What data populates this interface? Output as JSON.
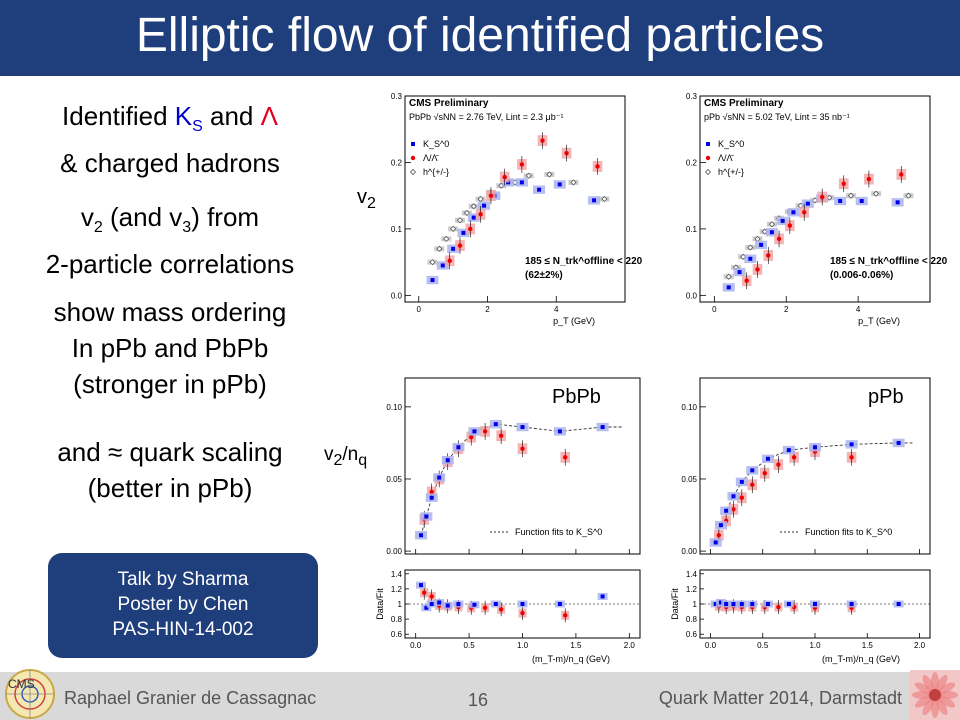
{
  "title": "Elliptic flow of identified particles",
  "bullets": {
    "b1_l1_a": "Identified ",
    "b1_l1_k": "K",
    "b1_l1_ks": "S",
    "b1_l1_and": " and ",
    "b1_l1_lambda": "Λ",
    "b1_l2": "& charged hadrons",
    "b2_l1_a": "v",
    "b2_l1_sub": "2",
    "b2_l1_b": " (and v",
    "b2_l1_sub2": "3",
    "b2_l1_c": ") from",
    "b2_l2": "2-particle correlations",
    "b3_l1": "show mass ordering",
    "b3_l2": "In pPb and PbPb",
    "b3_l3": "(stronger in pPb)",
    "b4_l1": "and ≈ quark scaling",
    "b4_l2": "(better in pPb)"
  },
  "talkbox": {
    "line1": "Talk by Sharma",
    "line2": "Poster by Chen",
    "line3": "PAS-HIN-14-002"
  },
  "footer": {
    "left": "Raphael Granier de Cassagnac",
    "page": "16",
    "right": "Quark Matter 2014, Darmstadt"
  },
  "overlays": {
    "v2": "v",
    "v2_sub": "2",
    "v2nq": "v",
    "v2nq_sub": "2",
    "v2nq_rest": "/n",
    "v2nq_sub2": "q",
    "pbpb": "PbPb",
    "ppb": "pPb"
  },
  "colors": {
    "title_bg": "#1f3e7c",
    "ks": "#0000ee",
    "lambda": "#ee0000",
    "hadron": "#555555",
    "ks_box": "#aab4ee",
    "lambda_box": "#f4a6a6",
    "hadron_box": "#c8c8c8"
  },
  "chart_data": [
    {
      "type": "scatter",
      "panel": "top-left",
      "header": "CMS Preliminary",
      "system": "PbPb  √sNN = 2.76 TeV, Lint = 2.3 μb⁻¹",
      "selection": "185 ≤ N_trk^offline < 220",
      "selection2": "(62±2%)",
      "xlabel": "p_T (GeV)",
      "ylabel": "v2",
      "xlim": [
        -0.4,
        6.0
      ],
      "ylim": [
        -0.01,
        0.3
      ],
      "xticks": [
        "0",
        "2",
        "4"
      ],
      "yticks": [
        "0.0",
        "0.1",
        "0.2",
        "0.3"
      ],
      "legend": [
        "K_S^0",
        "Λ/Λ̄",
        "h^{+/-}"
      ],
      "series": [
        {
          "name": "K_S^0",
          "x": [
            0.4,
            0.7,
            1.0,
            1.3,
            1.6,
            1.9,
            2.2,
            2.6,
            3.0,
            3.5,
            4.1,
            5.1
          ],
          "y": [
            0.023,
            0.045,
            0.07,
            0.094,
            0.117,
            0.135,
            0.15,
            0.17,
            0.17,
            0.159,
            0.167,
            0.143
          ]
        },
        {
          "name": "Λ/Λ̄",
          "x": [
            0.9,
            1.2,
            1.5,
            1.8,
            2.1,
            2.5,
            3.0,
            3.6,
            4.3,
            5.2
          ],
          "y": [
            0.052,
            0.075,
            0.1,
            0.122,
            0.15,
            0.178,
            0.197,
            0.233,
            0.214,
            0.194
          ]
        },
        {
          "name": "h^{+/-}",
          "x": [
            0.4,
            0.6,
            0.8,
            1.0,
            1.2,
            1.4,
            1.6,
            1.8,
            2.1,
            2.4,
            2.8,
            3.2,
            3.8,
            4.5,
            5.4
          ],
          "y": [
            0.05,
            0.07,
            0.085,
            0.1,
            0.113,
            0.124,
            0.134,
            0.145,
            0.155,
            0.165,
            0.17,
            0.18,
            0.182,
            0.17,
            0.145
          ]
        }
      ]
    },
    {
      "type": "scatter",
      "panel": "top-right",
      "header": "CMS Preliminary",
      "system": "pPb  √sNN = 5.02 TeV, Lint = 35 nb⁻¹",
      "selection": "185 ≤ N_trk^offline < 220",
      "selection2": "(0.006-0.06%)",
      "xlabel": "p_T (GeV)",
      "ylabel": "v2",
      "xlim": [
        -0.4,
        6.0
      ],
      "ylim": [
        -0.01,
        0.3
      ],
      "xticks": [
        "0",
        "2",
        "4"
      ],
      "yticks": [
        "0.0",
        "0.1",
        "0.2",
        "0.3"
      ],
      "legend": [
        "K_S^0",
        "Λ/Λ̄",
        "h^{+/-}"
      ],
      "series": [
        {
          "name": "K_S^0",
          "x": [
            0.4,
            0.7,
            1.0,
            1.3,
            1.6,
            1.9,
            2.2,
            2.6,
            3.0,
            3.5,
            4.1,
            5.1
          ],
          "y": [
            0.012,
            0.035,
            0.055,
            0.076,
            0.095,
            0.112,
            0.125,
            0.138,
            0.146,
            0.142,
            0.142,
            0.14
          ]
        },
        {
          "name": "Λ/Λ̄",
          "x": [
            0.9,
            1.2,
            1.5,
            1.8,
            2.1,
            2.5,
            3.0,
            3.6,
            4.3,
            5.2
          ],
          "y": [
            0.022,
            0.039,
            0.06,
            0.085,
            0.105,
            0.125,
            0.148,
            0.168,
            0.175,
            0.182
          ]
        },
        {
          "name": "h^{+/-}",
          "x": [
            0.4,
            0.6,
            0.8,
            1.0,
            1.2,
            1.4,
            1.6,
            1.8,
            2.1,
            2.4,
            2.8,
            3.2,
            3.8,
            4.5,
            5.4
          ],
          "y": [
            0.028,
            0.042,
            0.058,
            0.072,
            0.085,
            0.096,
            0.107,
            0.116,
            0.126,
            0.135,
            0.143,
            0.147,
            0.15,
            0.153,
            0.15
          ]
        }
      ]
    },
    {
      "type": "scatter",
      "panel": "bottom-left",
      "label": "PbPb",
      "fit_label": "Function fits to K_S^0",
      "xlabel": "(m_T-m)/n_q (GeV)",
      "ylabel": "v2/nq",
      "xlim": [
        -0.1,
        2.1
      ],
      "ylim": [
        -0.002,
        0.12
      ],
      "xticks": [
        "0.0",
        "0.5",
        "1.0",
        "1.5",
        "2.0"
      ],
      "yticks": [
        "0.00",
        "0.05",
        "0.10"
      ],
      "ratio_ylabel": "Data/Fit",
      "ratio_ylim": [
        0.55,
        1.45
      ],
      "ratio_yticks": [
        "0.6",
        "0.8",
        "1",
        "1.2",
        "1.4"
      ],
      "series": [
        {
          "name": "K_S^0",
          "x": [
            0.05,
            0.1,
            0.15,
            0.22,
            0.3,
            0.4,
            0.55,
            0.75,
            1.0,
            1.35,
            1.75
          ],
          "y": [
            0.011,
            0.024,
            0.037,
            0.051,
            0.063,
            0.072,
            0.083,
            0.088,
            0.086,
            0.083,
            0.086
          ]
        },
        {
          "name": "Λ/Λ̄",
          "x": [
            0.08,
            0.15,
            0.22,
            0.3,
            0.4,
            0.52,
            0.65,
            0.8,
            1.0,
            1.4
          ],
          "y": [
            0.022,
            0.041,
            0.05,
            0.062,
            0.071,
            0.079,
            0.083,
            0.08,
            0.071,
            0.065
          ]
        }
      ],
      "ratio_series": [
        {
          "name": "K_S^0",
          "x": [
            0.05,
            0.1,
            0.15,
            0.22,
            0.3,
            0.4,
            0.55,
            0.75,
            1.0,
            1.35,
            1.75
          ],
          "y": [
            1.25,
            0.95,
            1.0,
            1.02,
            0.98,
            1.0,
            0.99,
            1.0,
            1.0,
            1.0,
            1.1
          ]
        },
        {
          "name": "Λ/Λ̄",
          "x": [
            0.08,
            0.15,
            0.22,
            0.3,
            0.4,
            0.52,
            0.65,
            0.8,
            1.0,
            1.4
          ],
          "y": [
            1.15,
            1.1,
            0.98,
            0.97,
            0.96,
            0.95,
            0.95,
            0.93,
            0.88,
            0.85
          ]
        }
      ]
    },
    {
      "type": "scatter",
      "panel": "bottom-right",
      "label": "pPb",
      "fit_label": "Function fits to K_S^0",
      "xlabel": "(m_T-m)/n_q (GeV)",
      "ylabel": "v2/nq",
      "xlim": [
        -0.1,
        2.1
      ],
      "ylim": [
        -0.002,
        0.12
      ],
      "xticks": [
        "0.0",
        "0.5",
        "1.0",
        "1.5",
        "2.0"
      ],
      "yticks": [
        "0.00",
        "0.05",
        "0.10"
      ],
      "ratio_ylabel": "Data/Fit",
      "ratio_ylim": [
        0.55,
        1.45
      ],
      "ratio_yticks": [
        "0.6",
        "0.8",
        "1",
        "1.2",
        "1.4"
      ],
      "series": [
        {
          "name": "K_S^0",
          "x": [
            0.05,
            0.1,
            0.15,
            0.22,
            0.3,
            0.4,
            0.55,
            0.75,
            1.0,
            1.35,
            1.8
          ],
          "y": [
            0.006,
            0.018,
            0.028,
            0.038,
            0.048,
            0.056,
            0.064,
            0.07,
            0.072,
            0.074,
            0.075
          ]
        },
        {
          "name": "Λ/Λ̄",
          "x": [
            0.08,
            0.15,
            0.22,
            0.3,
            0.4,
            0.52,
            0.65,
            0.8,
            1.0,
            1.35
          ],
          "y": [
            0.011,
            0.021,
            0.029,
            0.037,
            0.046,
            0.054,
            0.06,
            0.065,
            0.069,
            0.065
          ]
        }
      ],
      "ratio_series": [
        {
          "name": "K_S^0",
          "x": [
            0.05,
            0.1,
            0.15,
            0.22,
            0.3,
            0.4,
            0.55,
            0.75,
            1.0,
            1.35,
            1.8
          ],
          "y": [
            1.0,
            1.02,
            1.0,
            1.0,
            1.0,
            1.0,
            1.0,
            1.0,
            1.0,
            1.0,
            1.0
          ]
        },
        {
          "name": "Λ/Λ̄",
          "x": [
            0.08,
            0.15,
            0.22,
            0.3,
            0.4,
            0.52,
            0.65,
            0.8,
            1.0,
            1.35
          ],
          "y": [
            0.97,
            0.96,
            0.97,
            0.96,
            0.96,
            0.96,
            0.96,
            0.96,
            0.95,
            0.95
          ]
        }
      ]
    }
  ]
}
